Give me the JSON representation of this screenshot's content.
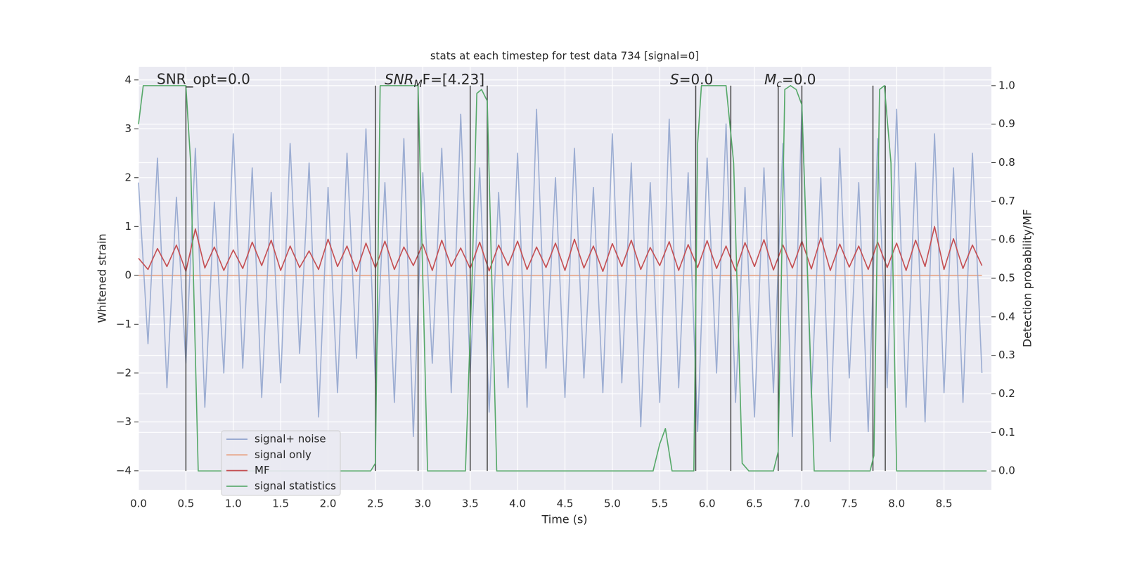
{
  "chart_data": {
    "type": "line",
    "title": "stats at each timestep for test data 734 [signal=0]",
    "x_label": "Time (s)",
    "y_label": "Whitened strain",
    "y2_label": "Detection probability/MF",
    "xlim": [
      0,
      9.0
    ],
    "ylim": [
      -4.39,
      4.27
    ],
    "y2lim": [
      -0.049,
      1.049
    ],
    "xticks": [
      {
        "value": 0,
        "label": "0.0"
      },
      0.5,
      {
        "value": 1,
        "label": "1.0"
      },
      1.5,
      {
        "value": 2,
        "label": "2.0"
      },
      2.5,
      {
        "value": 3,
        "label": "3.0"
      },
      3.5,
      {
        "value": 4,
        "label": "4.0"
      },
      4.5,
      {
        "value": 5,
        "label": "5.0"
      },
      5.5,
      {
        "value": 6,
        "label": "6.0"
      },
      6.5,
      {
        "value": 7,
        "label": "7.0"
      },
      7.5,
      {
        "value": 8,
        "label": "8.0"
      },
      8.5
    ],
    "yticks": [
      {
        "value": -4,
        "label": "−4"
      },
      {
        "value": -3,
        "label": "−3"
      },
      {
        "value": -2,
        "label": "−2"
      },
      {
        "value": -1,
        "label": "−1"
      },
      0,
      1,
      2,
      3,
      4
    ],
    "y2ticks": [
      {
        "value": 0,
        "label": "0.0"
      },
      0.1,
      0.2,
      0.3,
      0.4,
      0.5,
      0.6,
      0.7,
      0.8,
      0.9,
      {
        "value": 1,
        "label": "1.0"
      }
    ],
    "grid": true,
    "legend": "lower left",
    "series": [
      {
        "name": "signal+ noise",
        "color": "#8ea2cc",
        "x": [
          0,
          0.1,
          0.2,
          0.3,
          0.4,
          0.5,
          0.6,
          0.7,
          0.8,
          0.9,
          1,
          1.1,
          1.2,
          1.3,
          1.4,
          1.5,
          1.6,
          1.7,
          1.8,
          1.9,
          2,
          2.1,
          2.2,
          2.3,
          2.4,
          2.5,
          2.6,
          2.7,
          2.8,
          2.9,
          3,
          3.1,
          3.2,
          3.3,
          3.4,
          3.5,
          3.6,
          3.7,
          3.8,
          3.9,
          4,
          4.1,
          4.2,
          4.3,
          4.4,
          4.5,
          4.6,
          4.7,
          4.8,
          4.9,
          5,
          5.1,
          5.2,
          5.3,
          5.4,
          5.5,
          5.6,
          5.7,
          5.8,
          5.9,
          6,
          6.1,
          6.2,
          6.3,
          6.4,
          6.5,
          6.6,
          6.7,
          6.8,
          6.9,
          7,
          7.1,
          7.2,
          7.3,
          7.4,
          7.5,
          7.6,
          7.7,
          7.8,
          7.9,
          8,
          8.1,
          8.2,
          8.3,
          8.4,
          8.5,
          8.6,
          8.7,
          8.8,
          8.9
        ],
        "values": [
          1.9,
          -1.4,
          2.4,
          -2.3,
          1.6,
          -1.8,
          2.6,
          -2.7,
          1.5,
          -2.0,
          2.9,
          -1.9,
          2.2,
          -2.5,
          1.7,
          -2.2,
          2.7,
          -1.6,
          2.3,
          -2.9,
          1.8,
          -2.4,
          2.5,
          -1.7,
          3.0,
          -2.2,
          1.9,
          -2.6,
          2.8,
          -3.3,
          2.1,
          -1.8,
          2.6,
          -2.4,
          3.3,
          -2.0,
          2.2,
          -2.8,
          1.7,
          -2.3,
          2.5,
          -2.7,
          3.4,
          -1.9,
          2.0,
          -2.5,
          2.6,
          -2.1,
          1.8,
          -2.4,
          2.9,
          -2.2,
          2.3,
          -3.1,
          1.9,
          -2.6,
          3.2,
          -2.3,
          2.1,
          -3.2,
          2.4,
          -2.0,
          3.1,
          -2.6,
          1.8,
          -2.9,
          2.2,
          -2.4,
          2.7,
          -3.3,
          3.5,
          -2.5,
          2.0,
          -3.4,
          2.6,
          -2.1,
          1.9,
          -3.2,
          2.8,
          -2.3,
          3.4,
          -2.7,
          2.3,
          -3.0,
          2.9,
          -2.4,
          2.2,
          -2.6,
          2.5,
          -2.0
        ]
      },
      {
        "name": "signal only",
        "color": "#e8a586",
        "x": [
          0,
          8.9
        ],
        "values": [
          0,
          0
        ]
      },
      {
        "name": "MF",
        "color": "#c44e52",
        "x": [
          0,
          0.1,
          0.2,
          0.3,
          0.4,
          0.5,
          0.6,
          0.7,
          0.8,
          0.9,
          1,
          1.1,
          1.2,
          1.3,
          1.4,
          1.5,
          1.6,
          1.7,
          1.8,
          1.9,
          2,
          2.1,
          2.2,
          2.3,
          2.4,
          2.5,
          2.6,
          2.7,
          2.8,
          2.9,
          3,
          3.1,
          3.2,
          3.3,
          3.4,
          3.5,
          3.6,
          3.7,
          3.8,
          3.9,
          4,
          4.1,
          4.2,
          4.3,
          4.4,
          4.5,
          4.6,
          4.7,
          4.8,
          4.9,
          5,
          5.1,
          5.2,
          5.3,
          5.4,
          5.5,
          5.6,
          5.7,
          5.8,
          5.9,
          6,
          6.1,
          6.2,
          6.3,
          6.4,
          6.5,
          6.6,
          6.7,
          6.8,
          6.9,
          7,
          7.1,
          7.2,
          7.3,
          7.4,
          7.5,
          7.6,
          7.7,
          7.8,
          7.9,
          8,
          8.1,
          8.2,
          8.3,
          8.4,
          8.5,
          8.6,
          8.7,
          8.8,
          8.9
        ],
        "values": [
          0.35,
          0.12,
          0.55,
          0.18,
          0.62,
          0.08,
          0.95,
          0.15,
          0.58,
          0.1,
          0.52,
          0.14,
          0.68,
          0.2,
          0.72,
          0.1,
          0.6,
          0.16,
          0.5,
          0.12,
          0.74,
          0.18,
          0.6,
          0.08,
          0.66,
          0.15,
          0.7,
          0.12,
          0.58,
          0.2,
          0.64,
          0.1,
          0.72,
          0.18,
          0.56,
          0.14,
          0.68,
          0.09,
          0.62,
          0.2,
          0.7,
          0.12,
          0.58,
          0.16,
          0.66,
          0.1,
          0.74,
          0.15,
          0.6,
          0.08,
          0.65,
          0.18,
          0.72,
          0.12,
          0.57,
          0.2,
          0.69,
          0.1,
          0.63,
          0.16,
          0.71,
          0.14,
          0.6,
          0.09,
          0.67,
          0.18,
          0.73,
          0.11,
          0.62,
          0.15,
          0.7,
          0.13,
          0.77,
          0.1,
          0.64,
          0.17,
          0.6,
          0.12,
          0.68,
          0.16,
          0.66,
          0.1,
          0.72,
          0.18,
          1.0,
          0.12,
          0.75,
          0.14,
          0.62,
          0.2
        ]
      },
      {
        "name": "signal statistics",
        "color": "#55a868",
        "axis": "y2",
        "x": [
          0,
          0.05,
          0.5,
          0.55,
          0.63,
          2.45,
          2.5,
          2.55,
          2.95,
          3.05,
          3.45,
          3.52,
          3.57,
          3.62,
          3.68,
          3.78,
          5.43,
          5.5,
          5.56,
          5.63,
          5.86,
          5.9,
          5.94,
          6.2,
          6.28,
          6.37,
          6.44,
          6.7,
          6.75,
          6.82,
          6.88,
          6.94,
          7.0,
          7.13,
          7.72,
          7.76,
          7.82,
          7.87,
          7.94,
          8.0,
          8.95
        ],
        "values": [
          0.9,
          1.0,
          1.0,
          0.8,
          0.0,
          0.0,
          0.02,
          1.0,
          1.0,
          0.0,
          0.0,
          0.5,
          0.98,
          0.99,
          0.96,
          0.0,
          0.0,
          0.07,
          0.11,
          0.0,
          0.0,
          0.85,
          1.0,
          1.0,
          0.8,
          0.02,
          0.0,
          0.0,
          0.05,
          0.99,
          1.0,
          0.99,
          0.95,
          0.0,
          0.0,
          0.04,
          0.99,
          1.0,
          0.8,
          0.0,
          0.0
        ]
      }
    ],
    "vlines": {
      "x": [
        0.5,
        2.5,
        2.95,
        3.5,
        3.68,
        5.88,
        6.25,
        6.75,
        7.0,
        7.75,
        7.88
      ],
      "range": [
        0,
        1
      ],
      "axis": "y2",
      "color": "#444444"
    },
    "annotations": [
      {
        "text": "SNR_opt=0.0"
      },
      {
        "main": "SNR",
        "sub": "M",
        "rest": "F=[4.23]"
      },
      {
        "main": "S",
        "rest": "=0.0"
      },
      {
        "main": "M",
        "sub": "c",
        "rest": "=0.0"
      }
    ]
  }
}
